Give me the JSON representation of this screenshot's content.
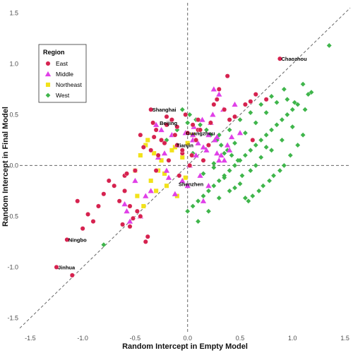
{
  "chart_data": {
    "type": "scatter",
    "title": "",
    "xlabel": "Random Intercept in Empty Model",
    "ylabel": "Random Intercept in Final Model",
    "xlim": [
      -1.6,
      1.55
    ],
    "ylim": [
      -1.65,
      1.6
    ],
    "xticks": [
      -1.5,
      -1.0,
      -0.5,
      0.0,
      0.5,
      1.0,
      1.5
    ],
    "xtick_labels": [
      "-1.5",
      "-1.0",
      "-0.5",
      "0.0",
      "0.5",
      "1.0",
      "1.5"
    ],
    "yticks": [
      -1.5,
      -1.0,
      -0.5,
      0.0,
      0.5,
      1.0,
      1.5
    ],
    "ytick_labels": [
      "-1.5",
      "-1.0",
      "-0.5",
      "0.0",
      "0.5",
      "1.0",
      "1.5"
    ],
    "grid": false,
    "reference_lines": [
      "x=0",
      "y=0",
      "y=x"
    ],
    "legend": {
      "title": "Region",
      "position": "top-left",
      "entries": [
        {
          "label": "East",
          "color": "#D6224F",
          "shape": "circle"
        },
        {
          "label": "Middle",
          "color": "#E040E8",
          "shape": "triangle"
        },
        {
          "label": "Northeast",
          "color": "#F2E21A",
          "shape": "square"
        },
        {
          "label": "West",
          "color": "#3FB54B",
          "shape": "diamond"
        }
      ]
    },
    "series": [
      {
        "name": "East",
        "x": [
          -0.35,
          0.0,
          -0.2,
          -0.1,
          -0.05,
          0.88,
          -1.15,
          -1.25,
          -1.1,
          -0.8,
          -0.6,
          -0.5,
          -0.85,
          -0.55,
          -0.4,
          -0.3,
          -0.45,
          -0.2,
          -0.15,
          -0.1,
          0.05,
          0.1,
          0.15,
          0.2,
          -0.35,
          -0.25,
          -0.3,
          -0.12,
          0.08,
          0.12,
          -0.6,
          -0.7,
          -0.9,
          -1.0,
          -0.75,
          -0.65,
          -0.55,
          -0.45,
          -0.38,
          -0.28,
          -0.18,
          -0.08,
          0.02,
          0.25,
          0.3,
          0.4,
          0.45,
          0.55,
          0.6,
          0.62,
          0.65,
          0.75,
          -0.02,
          0.35,
          -0.48,
          -0.52,
          -0.62,
          0.22,
          0.28,
          0.38,
          -0.22,
          -0.32,
          -0.42,
          -0.05,
          0.04,
          0.1,
          -1.05,
          -0.95,
          -0.58,
          -0.33
        ],
        "y": [
          0.55,
          0.32,
          0.48,
          0.2,
          0.12,
          1.05,
          -0.73,
          -1.0,
          -1.08,
          -0.28,
          -0.1,
          -0.05,
          -0.4,
          -0.6,
          -0.75,
          0.35,
          0.3,
          0.4,
          0.45,
          0.38,
          0.4,
          0.35,
          0.05,
          0.2,
          0.15,
          0.25,
          -0.05,
          0.3,
          0.25,
          0.35,
          -0.25,
          -0.2,
          -0.55,
          -0.62,
          -0.15,
          -0.35,
          -0.4,
          -0.5,
          -0.7,
          0.1,
          0.05,
          -0.1,
          0.0,
          0.6,
          0.75,
          0.45,
          0.48,
          0.6,
          0.63,
          0.25,
          0.7,
          0.65,
          0.5,
          0.55,
          -0.45,
          -0.52,
          -0.58,
          0.42,
          0.65,
          0.88,
          0.22,
          0.28,
          0.18,
          0.15,
          0.1,
          0.45,
          -0.35,
          -0.48,
          -0.08,
          0.42
        ]
      },
      {
        "name": "Middle",
        "x": [
          0.2,
          0.25,
          0.3,
          0.22,
          -0.3,
          -0.25,
          -0.15,
          -0.1,
          0.05,
          0.1,
          0.15,
          0.18,
          0.28,
          0.32,
          0.35,
          0.4,
          -0.6,
          -0.55,
          -0.45,
          -0.4,
          -0.35,
          -0.2,
          -0.05,
          0.0,
          0.02,
          0.08,
          0.12,
          0.2,
          0.3,
          0.38,
          0.42,
          0.5,
          -0.5,
          -0.58,
          -0.28,
          -0.22,
          -0.18,
          0.24,
          0.34,
          0.45,
          0.15,
          -0.12,
          -0.02,
          0.06,
          0.14,
          0.26,
          0.05,
          0.28
        ],
        "y": [
          0.3,
          0.75,
          0.7,
          0.42,
          0.4,
          0.35,
          0.3,
          0.2,
          0.25,
          0.22,
          0.18,
          0.15,
          0.12,
          0.1,
          0.05,
          0.15,
          -0.38,
          -0.55,
          -0.5,
          -0.3,
          -0.25,
          -0.05,
          -0.15,
          -0.2,
          0.0,
          0.1,
          -0.1,
          -0.2,
          0.05,
          0.2,
          0.28,
          0.32,
          -0.15,
          -0.45,
          0.08,
          0.12,
          -0.12,
          0.5,
          0.55,
          0.6,
          -0.35,
          -0.28,
          0.32,
          0.38,
          0.45,
          0.25,
          0.3,
          0.28
        ]
      },
      {
        "name": "Northeast",
        "x": [
          -0.5,
          -0.45,
          -0.4,
          -0.35,
          -0.3,
          -0.25,
          -0.2,
          -0.15,
          -0.1,
          -0.05,
          0.0,
          0.05,
          -0.42,
          -0.32,
          -0.22,
          -0.12,
          -0.02,
          -0.48,
          -0.38,
          -0.28
        ],
        "y": [
          -0.05,
          0.1,
          0.2,
          -0.15,
          -0.25,
          0.05,
          -0.2,
          0.15,
          -0.3,
          0.08,
          0.22,
          0.3,
          -0.4,
          0.12,
          -0.08,
          0.18,
          -0.12,
          -0.3,
          0.25,
          -0.05
        ]
      },
      {
        "name": "West",
        "x": [
          1.35,
          1.1,
          1.15,
          1.05,
          1.0,
          0.95,
          0.9,
          0.85,
          0.8,
          0.75,
          0.7,
          0.65,
          0.6,
          0.55,
          0.5,
          0.45,
          0.4,
          0.35,
          0.3,
          0.25,
          0.2,
          0.15,
          0.1,
          0.05,
          0.0,
          1.1,
          1.05,
          0.98,
          0.92,
          0.88,
          0.82,
          0.78,
          0.72,
          0.68,
          0.62,
          0.58,
          0.52,
          0.48,
          0.42,
          0.38,
          0.32,
          0.28,
          0.22,
          0.18,
          0.12,
          0.08,
          0.02,
          -0.05,
          1.18,
          0.95,
          0.85,
          0.75,
          0.65,
          0.55,
          0.45,
          0.35,
          0.25,
          0.15,
          -0.8,
          0.1,
          0.2,
          0.3,
          0.4,
          0.5,
          0.6,
          0.7,
          0.8,
          0.9,
          1.0,
          0.05,
          0.15,
          0.25,
          0.35,
          0.45,
          0.55,
          0.65,
          0.75,
          -0.1,
          -0.2,
          0.0,
          0.3,
          0.4,
          0.5,
          0.6,
          0.7,
          0.8,
          0.92,
          1.02,
          1.12
        ],
        "y": [
          1.18,
          0.8,
          0.7,
          0.6,
          0.55,
          0.5,
          0.45,
          0.4,
          0.35,
          0.3,
          0.25,
          0.2,
          0.15,
          0.1,
          0.05,
          0.0,
          -0.05,
          -0.1,
          -0.15,
          -0.2,
          -0.25,
          -0.3,
          -0.35,
          -0.4,
          -0.45,
          0.3,
          0.2,
          0.1,
          0.0,
          -0.05,
          -0.1,
          -0.15,
          -0.2,
          -0.25,
          -0.3,
          -0.35,
          -0.1,
          0.05,
          0.1,
          0.15,
          0.2,
          0.25,
          0.3,
          0.35,
          0.4,
          0.45,
          0.5,
          0.55,
          0.72,
          0.65,
          0.62,
          0.52,
          0.42,
          0.32,
          0.22,
          0.12,
          0.02,
          -0.08,
          -0.78,
          -0.55,
          -0.45,
          -0.32,
          -0.25,
          -0.18,
          -0.05,
          0.08,
          0.15,
          0.25,
          0.38,
          0.12,
          0.05,
          -0.02,
          -0.12,
          -0.22,
          -0.32,
          0.0,
          0.18,
          0.35,
          0.25,
          0.42,
          0.3,
          0.35,
          0.45,
          0.52,
          0.6,
          0.68,
          0.75,
          0.62,
          0.55
        ]
      }
    ],
    "annotations": [
      {
        "text": "Chaozhou",
        "x": 0.88,
        "y": 1.05
      },
      {
        "text": "Shanghai",
        "x": -0.35,
        "y": 0.55
      },
      {
        "text": "Beijing",
        "x": -0.28,
        "y": 0.42
      },
      {
        "text": "Guangzhou",
        "x": -0.03,
        "y": 0.32
      },
      {
        "text": "Tianjin",
        "x": -0.12,
        "y": 0.2
      },
      {
        "text": "Shenzhen",
        "x": -0.1,
        "y": -0.18
      },
      {
        "text": "Ningbo",
        "x": -1.15,
        "y": -0.73
      },
      {
        "text": "Jinhua",
        "x": -1.25,
        "y": -1.0
      }
    ]
  }
}
